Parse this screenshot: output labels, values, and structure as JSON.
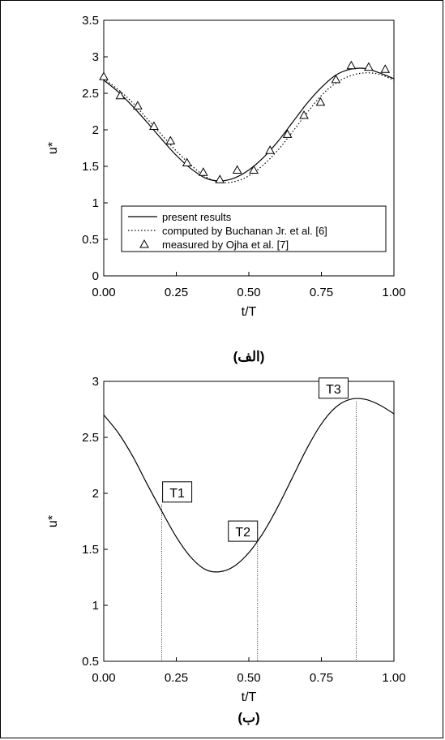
{
  "chart_data": [
    {
      "type": "line",
      "panel_label": "(الف)",
      "xlabel": "t/T",
      "ylabel": "u*",
      "xlim": [
        0,
        1
      ],
      "ylim": [
        0,
        3.5
      ],
      "x_ticks": [
        "0.00",
        "0.25",
        "0.50",
        "0.75",
        "1.00"
      ],
      "y_ticks": [
        "0",
        "0.5",
        "1",
        "1.5",
        "2",
        "2.5",
        "3",
        "3.5"
      ],
      "legend_position": "bottom-center",
      "series": [
        {
          "name": "present results",
          "style": "solid",
          "x": [
            0.0,
            0.05,
            0.1,
            0.15,
            0.2,
            0.25,
            0.3,
            0.35,
            0.4,
            0.45,
            0.5,
            0.55,
            0.6,
            0.65,
            0.7,
            0.75,
            0.8,
            0.85,
            0.9,
            0.95,
            1.0
          ],
          "y": [
            2.68,
            2.52,
            2.32,
            2.1,
            1.87,
            1.65,
            1.47,
            1.34,
            1.3,
            1.34,
            1.45,
            1.62,
            1.84,
            2.1,
            2.36,
            2.58,
            2.75,
            2.83,
            2.84,
            2.78,
            2.7
          ]
        },
        {
          "name": "computed by Buchanan Jr. et al.  [6]",
          "style": "dotted",
          "x": [
            0.0,
            0.05,
            0.1,
            0.15,
            0.2,
            0.25,
            0.3,
            0.35,
            0.4,
            0.45,
            0.5,
            0.55,
            0.6,
            0.65,
            0.7,
            0.75,
            0.8,
            0.85,
            0.9,
            0.95,
            1.0
          ],
          "y": [
            2.7,
            2.55,
            2.37,
            2.15,
            1.93,
            1.71,
            1.52,
            1.36,
            1.28,
            1.29,
            1.37,
            1.52,
            1.72,
            1.97,
            2.23,
            2.47,
            2.64,
            2.74,
            2.78,
            2.76,
            2.68
          ]
        },
        {
          "name": "measured by Ojha et al. [7]",
          "style": "triangle-markers",
          "x": [
            0.0,
            0.057,
            0.117,
            0.173,
            0.23,
            0.287,
            0.343,
            0.4,
            0.46,
            0.517,
            0.573,
            0.633,
            0.69,
            0.747,
            0.8,
            0.853,
            0.913,
            0.97
          ],
          "y": [
            2.73,
            2.47,
            2.33,
            2.05,
            1.85,
            1.55,
            1.42,
            1.32,
            1.45,
            1.45,
            1.72,
            1.94,
            2.2,
            2.38,
            2.69,
            2.88,
            2.86,
            2.83
          ]
        }
      ]
    },
    {
      "type": "line",
      "panel_label": "(ب)",
      "xlabel": "t/T",
      "ylabel": "u*",
      "xlim": [
        0,
        1
      ],
      "ylim": [
        0.5,
        3
      ],
      "x_ticks": [
        "0.00",
        "0.25",
        "0.50",
        "0.75",
        "1.00"
      ],
      "y_ticks": [
        "0.5",
        "1",
        "1.5",
        "2",
        "2.5",
        "3"
      ],
      "series": [
        {
          "style": "solid",
          "x": [
            0.0,
            0.05,
            0.1,
            0.15,
            0.2,
            0.25,
            0.3,
            0.35,
            0.4,
            0.45,
            0.5,
            0.55,
            0.6,
            0.65,
            0.7,
            0.75,
            0.8,
            0.85,
            0.9,
            0.95,
            1.0
          ],
          "y": [
            2.7,
            2.54,
            2.33,
            2.08,
            1.84,
            1.61,
            1.43,
            1.32,
            1.3,
            1.35,
            1.47,
            1.65,
            1.88,
            2.14,
            2.4,
            2.62,
            2.77,
            2.84,
            2.84,
            2.79,
            2.71
          ]
        }
      ],
      "markers": [
        {
          "label": "T1",
          "x": 0.2,
          "y": 1.9
        },
        {
          "label": "T2",
          "x": 0.53,
          "y": 1.55
        },
        {
          "label": "T3",
          "x": 0.87,
          "y": 2.82
        }
      ]
    }
  ]
}
